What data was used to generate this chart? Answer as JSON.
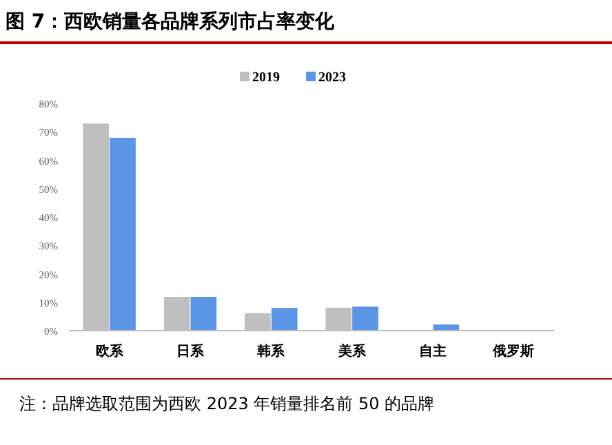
{
  "chart_data": {
    "type": "bar",
    "title": "图 7：西欧销量各品牌系列市占率变化",
    "categories": [
      "欧系",
      "日系",
      "韩系",
      "美系",
      "自主",
      "俄罗斯"
    ],
    "series": [
      {
        "name": "2019",
        "color": "#bfbfbf",
        "values": [
          73,
          12,
          6.3,
          8.2,
          0,
          0
        ]
      },
      {
        "name": "2023",
        "color": "#5b96e6",
        "values": [
          68,
          12,
          8.1,
          8.6,
          2.3,
          0
        ]
      }
    ],
    "ylim": [
      0,
      80
    ],
    "yticks": [
      {
        "value": 0,
        "label": "0%"
      },
      {
        "value": 10,
        "label": "10%"
      },
      {
        "value": 20,
        "label": "20%"
      },
      {
        "value": 30,
        "label": "30%"
      },
      {
        "value": 40,
        "label": "40%"
      },
      {
        "value": 50,
        "label": "50%"
      },
      {
        "value": 60,
        "label": "60%"
      },
      {
        "value": 70,
        "label": "70%"
      },
      {
        "value": 80,
        "label": "80%"
      }
    ],
    "legend": "top",
    "annotations": [
      "注：品牌选取范围为西欧 2023 年销量排名前 50 的品牌"
    ]
  }
}
